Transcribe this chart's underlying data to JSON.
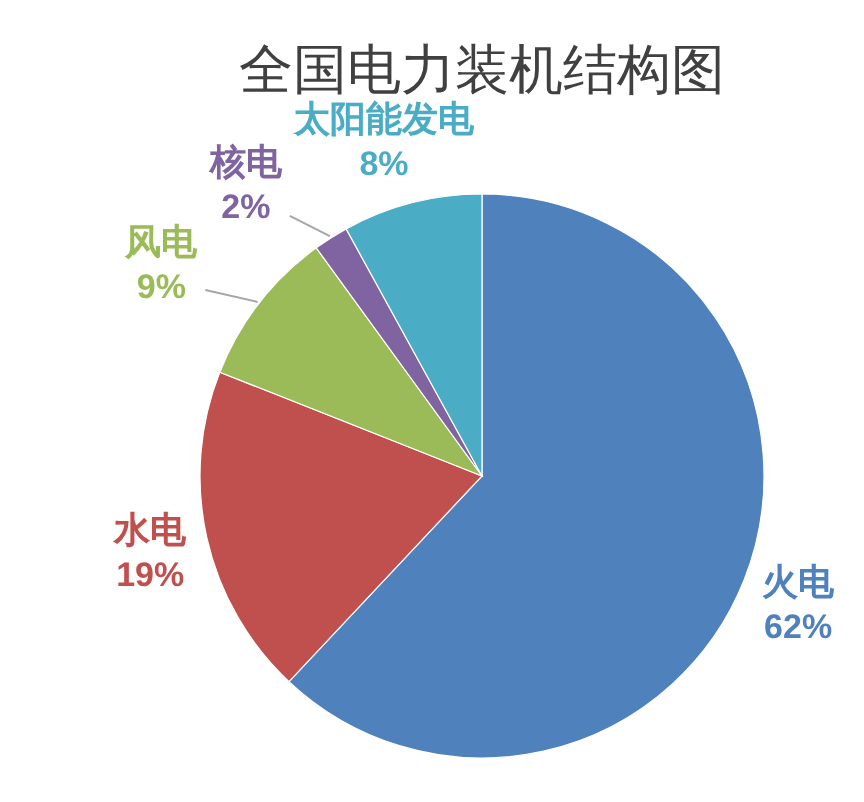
{
  "chart_data": {
    "type": "pie",
    "title": "全国电力装机结构图",
    "categories": [
      "火电",
      "水电",
      "风电",
      "核电",
      "太阳能发电"
    ],
    "values": [
      62,
      19,
      9,
      2,
      8
    ],
    "colors": [
      "#4f81bd",
      "#c0504d",
      "#9bbb59",
      "#8064a2",
      "#4bacc6"
    ],
    "value_labels": [
      "62%",
      "19%",
      "9%",
      "2%",
      "8%"
    ]
  }
}
